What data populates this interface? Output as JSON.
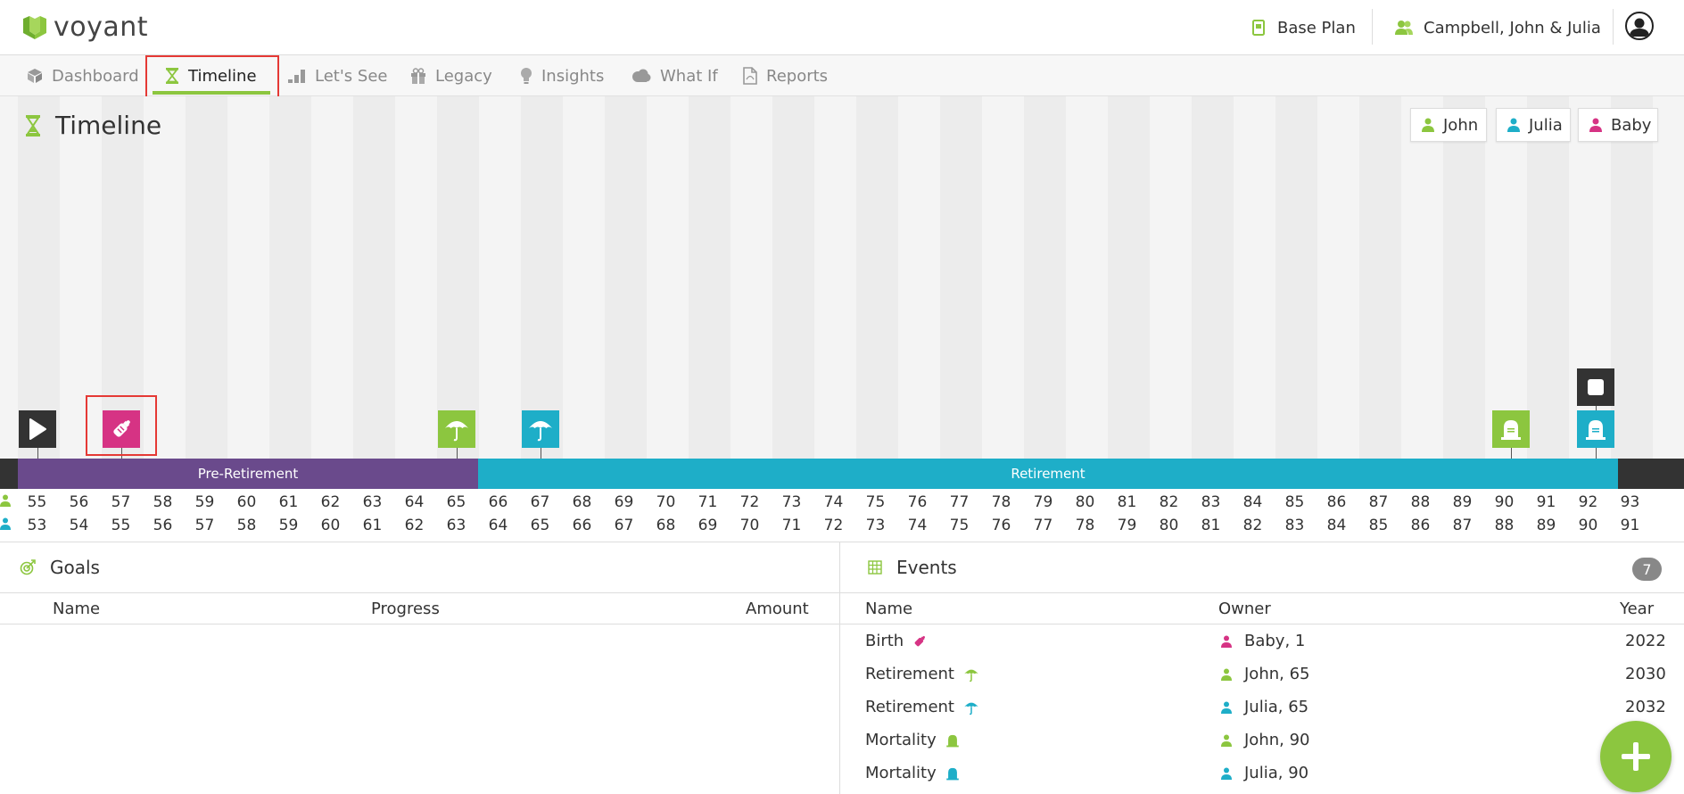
{
  "brand": {
    "name": "voyant",
    "color": "#8cc63f"
  },
  "header": {
    "plan_label": "Base Plan",
    "client_label": "Campbell, John & Julia"
  },
  "nav": {
    "tabs": [
      {
        "label": "Dashboard",
        "icon": "cube-icon"
      },
      {
        "label": "Timeline",
        "icon": "hourglass-icon",
        "active": true
      },
      {
        "label": "Let's See",
        "icon": "bar-chart-icon"
      },
      {
        "label": "Legacy",
        "icon": "gift-icon"
      },
      {
        "label": "Insights",
        "icon": "lightbulb-icon"
      },
      {
        "label": "What If",
        "icon": "cloud-icon"
      },
      {
        "label": "Reports",
        "icon": "pdf-icon"
      }
    ]
  },
  "timeline": {
    "title": "Timeline",
    "legend": [
      {
        "label": "John",
        "color": "#8cc63f"
      },
      {
        "label": "Julia",
        "color": "#1eaec8"
      },
      {
        "label": "Baby",
        "color": "#d63384"
      }
    ],
    "phases": [
      {
        "label": "Pre-Retirement",
        "color": "#6a4a8c"
      },
      {
        "label": "Retirement",
        "color": "#1eaec8"
      }
    ],
    "john_ages": [
      "55",
      "56",
      "57",
      "58",
      "59",
      "60",
      "61",
      "62",
      "63",
      "64",
      "65",
      "66",
      "67",
      "68",
      "69",
      "70",
      "71",
      "72",
      "73",
      "74",
      "75",
      "76",
      "77",
      "78",
      "79",
      "80",
      "81",
      "82",
      "83",
      "84",
      "85",
      "86",
      "87",
      "88",
      "89",
      "90",
      "91",
      "92",
      "93"
    ],
    "julia_ages": [
      "53",
      "54",
      "55",
      "56",
      "57",
      "58",
      "59",
      "60",
      "61",
      "62",
      "63",
      "64",
      "65",
      "66",
      "67",
      "68",
      "69",
      "70",
      "71",
      "72",
      "73",
      "74",
      "75",
      "76",
      "77",
      "78",
      "79",
      "80",
      "81",
      "82",
      "83",
      "84",
      "85",
      "86",
      "87",
      "88",
      "89",
      "90",
      "91"
    ]
  },
  "goals": {
    "title": "Goals",
    "columns": {
      "name": "Name",
      "progress": "Progress",
      "amount": "Amount"
    }
  },
  "events": {
    "title": "Events",
    "count": "7",
    "columns": {
      "name": "Name",
      "owner": "Owner",
      "year": "Year"
    },
    "rows": [
      {
        "name": "Birth",
        "owner": "Baby, 1",
        "year": "2022",
        "color": "#d63384",
        "icon": "baby-bottle-icon"
      },
      {
        "name": "Retirement",
        "owner": "John, 65",
        "year": "2030",
        "color": "#8cc63f",
        "icon": "umbrella-icon"
      },
      {
        "name": "Retirement",
        "owner": "Julia, 65",
        "year": "2032",
        "color": "#1eaec8",
        "icon": "umbrella-icon"
      },
      {
        "name": "Mortality",
        "owner": "John, 90",
        "year": "",
        "color": "#8cc63f",
        "icon": "tombstone-icon"
      },
      {
        "name": "Mortality",
        "owner": "Julia, 90",
        "year": "",
        "color": "#1eaec8",
        "icon": "tombstone-icon"
      }
    ]
  }
}
